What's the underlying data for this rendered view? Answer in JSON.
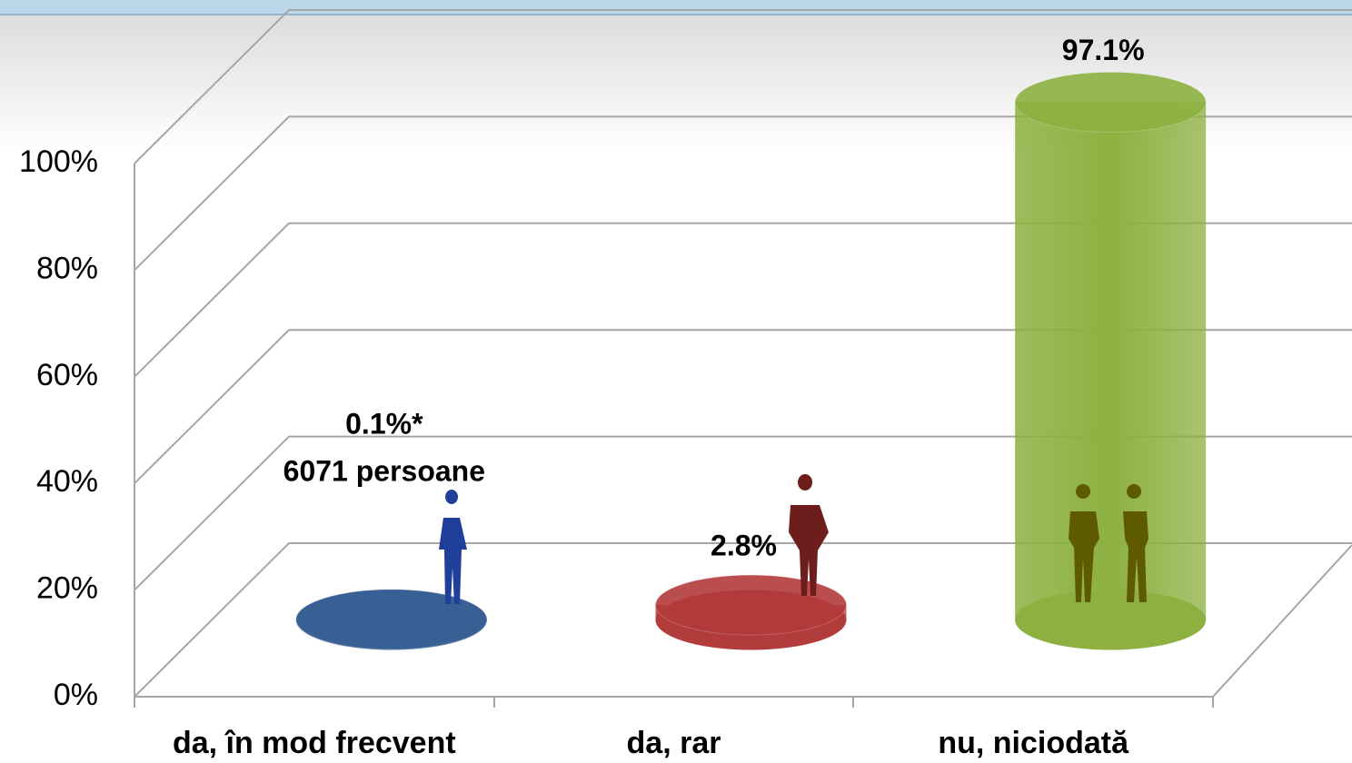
{
  "chart_data": {
    "type": "bar3d",
    "categories": [
      "da, în mod frecvent",
      "da, rar",
      "nu, niciodată"
    ],
    "values": [
      0.1,
      2.8,
      97.1
    ],
    "value_labels": [
      "0.1%*",
      "2.8%",
      "97.1%"
    ],
    "colors": [
      "#3a6194",
      "#b23b3b",
      "#8db040"
    ],
    "annotations": [
      "6071 persoane"
    ],
    "ylim": [
      0,
      100
    ],
    "yticks": [
      {
        "value": 0,
        "label": "0%"
      },
      {
        "value": 20,
        "label": "20%"
      },
      {
        "value": 40,
        "label": "40%"
      },
      {
        "value": 60,
        "label": "60%"
      },
      {
        "value": 80,
        "label": "80%"
      },
      {
        "value": 100,
        "label": "100%"
      }
    ],
    "grid": true
  }
}
